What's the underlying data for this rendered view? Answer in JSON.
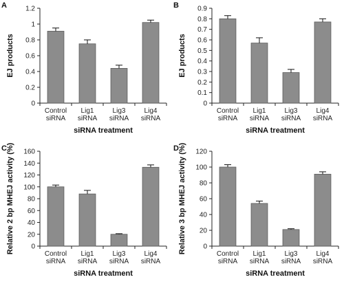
{
  "panels": [
    {
      "letter": "A"
    },
    {
      "letter": "B"
    },
    {
      "letter": "C"
    },
    {
      "letter": "D"
    }
  ],
  "colors": {
    "bar": "#8c8c8c",
    "bar_edge": "#5a5a5a",
    "axis": "#222222"
  },
  "chart_data": [
    {
      "type": "bar",
      "categories": [
        [
          "Control",
          "siRNA"
        ],
        [
          "Lig1",
          "siRNA"
        ],
        [
          "Lig3",
          "siRNA"
        ],
        [
          "Lig4",
          "siRNA"
        ]
      ],
      "values": [
        0.91,
        0.75,
        0.44,
        1.02
      ],
      "errors": [
        0.04,
        0.05,
        0.04,
        0.03
      ],
      "xlabel": "siRNA treatment",
      "ylabel": "EJ products",
      "ylim": [
        0,
        1.2
      ],
      "yticks": [
        0,
        0.2,
        0.4,
        0.6,
        0.8,
        1,
        1.2
      ],
      "ytick_labels": [
        "0",
        "0.2",
        "0.4",
        "0.6",
        "0.8",
        "1",
        "1.2"
      ],
      "grid": false
    },
    {
      "type": "bar",
      "categories": [
        [
          "Control",
          "siRNA"
        ],
        [
          "Lig1",
          "siRNA"
        ],
        [
          "Lig3",
          "siRNA"
        ],
        [
          "Lig4",
          "siRNA"
        ]
      ],
      "values": [
        0.8,
        0.57,
        0.29,
        0.77
      ],
      "errors": [
        0.03,
        0.05,
        0.03,
        0.03
      ],
      "xlabel": "siRNA treatment",
      "ylabel": "EJ products",
      "ylim": [
        0,
        0.9
      ],
      "yticks": [
        0,
        0.1,
        0.2,
        0.3,
        0.4,
        0.5,
        0.6,
        0.7,
        0.8,
        0.9
      ],
      "ytick_labels": [
        "0",
        "0.1",
        "0.2",
        "0.3",
        "0.4",
        "0.5",
        "0.6",
        "0.7",
        "0.8",
        "0.9"
      ],
      "grid": false
    },
    {
      "type": "bar",
      "categories": [
        [
          "Control",
          "siRNA"
        ],
        [
          "Lig1",
          "siRNA"
        ],
        [
          "Lig3",
          "siRNA"
        ],
        [
          "Lig4",
          "siRNA"
        ]
      ],
      "values": [
        100,
        88,
        20,
        133
      ],
      "errors": [
        3,
        6,
        1,
        4
      ],
      "xlabel": "siRNA treatment",
      "ylabel": "Relative 2 bp MHEJ activity (%)",
      "ylim": [
        0,
        160
      ],
      "yticks": [
        0,
        20,
        40,
        60,
        80,
        100,
        120,
        140,
        160
      ],
      "ytick_labels": [
        "0",
        "20",
        "40",
        "60",
        "80",
        "100",
        "120",
        "140",
        "160"
      ],
      "grid": false
    },
    {
      "type": "bar",
      "categories": [
        [
          "Control",
          "siRNA"
        ],
        [
          "Lig1",
          "siRNA"
        ],
        [
          "Lig3",
          "siRNA"
        ],
        [
          "Lig4",
          "siRNA"
        ]
      ],
      "values": [
        100,
        54,
        21,
        91
      ],
      "errors": [
        3,
        3,
        1,
        3
      ],
      "xlabel": "siRNA treatment",
      "ylabel": "Relative 3 bp MHEJ activity (%)",
      "ylim": [
        0,
        120
      ],
      "yticks": [
        0,
        20,
        40,
        60,
        80,
        100,
        120
      ],
      "ytick_labels": [
        "0",
        "20",
        "40",
        "60",
        "80",
        "100",
        "120"
      ],
      "grid": false
    }
  ]
}
